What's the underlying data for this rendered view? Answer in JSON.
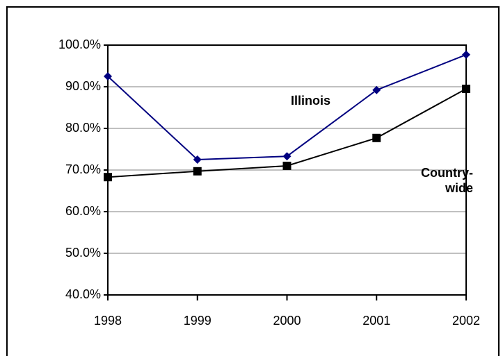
{
  "chart_data": {
    "type": "line",
    "categories": [
      "1998",
      "1999",
      "2000",
      "2001",
      "2002"
    ],
    "series": [
      {
        "name": "Illinois",
        "color": "#000080",
        "marker": "diamond",
        "values": [
          92.5,
          72.5,
          73.3,
          89.2,
          97.7
        ]
      },
      {
        "name": "Country-wide",
        "color": "#000000",
        "marker": "square",
        "values": [
          68.3,
          69.7,
          71.0,
          77.7,
          89.5
        ]
      }
    ],
    "ylim": [
      40,
      100
    ],
    "yticks": [
      {
        "value": 40,
        "label": "40.0%"
      },
      {
        "value": 50,
        "label": "50.0%"
      },
      {
        "value": 60,
        "label": "60.0%"
      },
      {
        "value": 70,
        "label": "70.0%"
      },
      {
        "value": 80,
        "label": "80.0%"
      },
      {
        "value": 90,
        "label": "90.0%"
      },
      {
        "value": 100,
        "label": "100.0%"
      }
    ],
    "grid": true
  }
}
